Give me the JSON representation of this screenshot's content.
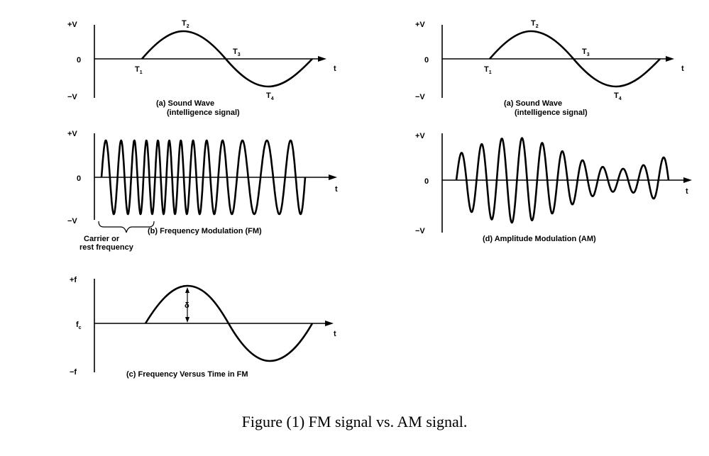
{
  "figure_caption": "Figure (1) FM signal vs. AM signal.",
  "panels": {
    "sound_left": {
      "y_top": "+V",
      "y_mid": "0",
      "y_bot": "−V",
      "x_axis": "t",
      "caption_line1": "(a) Sound Wave",
      "caption_line2": "(intelligence signal)",
      "points": [
        {
          "letter": "T",
          "index": "1"
        },
        {
          "letter": "T",
          "index": "2"
        },
        {
          "letter": "T",
          "index": "3"
        },
        {
          "letter": "T",
          "index": "4"
        }
      ]
    },
    "sound_right": {
      "y_top": "+V",
      "y_mid": "0",
      "y_bot": "−V",
      "x_axis": "t",
      "caption_line1": "(a) Sound Wave",
      "caption_line2": "(intelligence signal)",
      "points": [
        {
          "letter": "T",
          "index": "1"
        },
        {
          "letter": "T",
          "index": "2"
        },
        {
          "letter": "T",
          "index": "3"
        },
        {
          "letter": "T",
          "index": "4"
        }
      ]
    },
    "fm": {
      "y_top": "+V",
      "y_mid": "0",
      "y_bot": "−V",
      "x_axis": "t",
      "caption": "(b) Frequency Modulation (FM)",
      "carrier_line1": "Carrier or",
      "carrier_line2": "rest frequency"
    },
    "am": {
      "y_top": "+V",
      "y_mid": "0",
      "y_bot": "−V",
      "x_axis": "t",
      "caption": "(d) Amplitude Modulation (AM)"
    },
    "freq_time": {
      "y_top": "+f",
      "y_mid_letter": "f",
      "y_mid_sub": "c",
      "y_bot": "−f",
      "x_axis": "t",
      "deviation_symbol": "δ",
      "caption": "(c) Frequency Versus Time in FM"
    }
  }
}
